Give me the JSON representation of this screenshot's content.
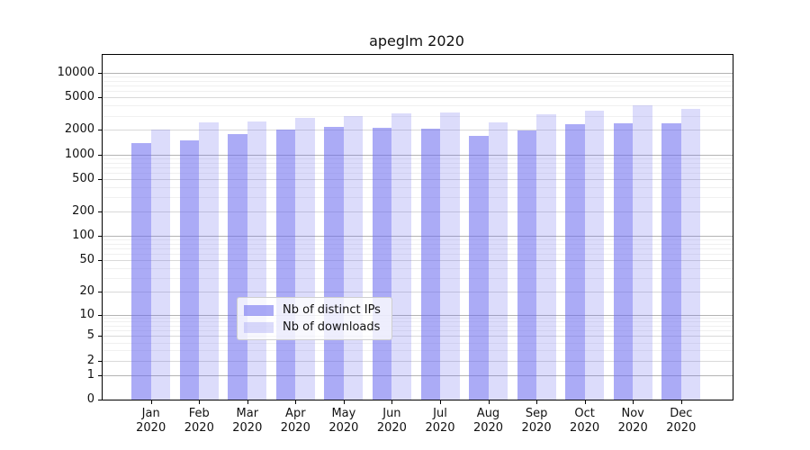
{
  "chart_data": {
    "type": "bar",
    "title": "apeglm 2020",
    "categories": [
      "Jan",
      "Feb",
      "Mar",
      "Apr",
      "May",
      "Jun",
      "Jul",
      "Aug",
      "Sep",
      "Oct",
      "Nov",
      "Dec"
    ],
    "category_sublabel": "2020",
    "series": [
      {
        "name": "Nb of distinct IPs",
        "color": "rgba(102,102,238,0.55)",
        "values": [
          1400,
          1500,
          1800,
          2000,
          2200,
          2150,
          2100,
          1700,
          1950,
          2350,
          2450,
          2450
        ]
      },
      {
        "name": "Nb of downloads",
        "color": "rgba(102,102,238,0.23)",
        "values": [
          2000,
          2500,
          2550,
          2800,
          2950,
          3200,
          3250,
          2500,
          3150,
          3450,
          4000,
          3650
        ]
      }
    ],
    "yscale": "log1p",
    "ylim": [
      0,
      16600
    ],
    "yticks": [
      0,
      1,
      2,
      5,
      10,
      20,
      50,
      100,
      200,
      500,
      1000,
      2000,
      5000,
      10000
    ],
    "grid": true,
    "legend_position": "lower center",
    "colors": {
      "bar_base": "#6666ee",
      "grid_major": "#d9d9d9",
      "grid_minor": "#f0f0f0",
      "grid_pow10": "#b3b3b3",
      "frame": "#000000"
    }
  }
}
